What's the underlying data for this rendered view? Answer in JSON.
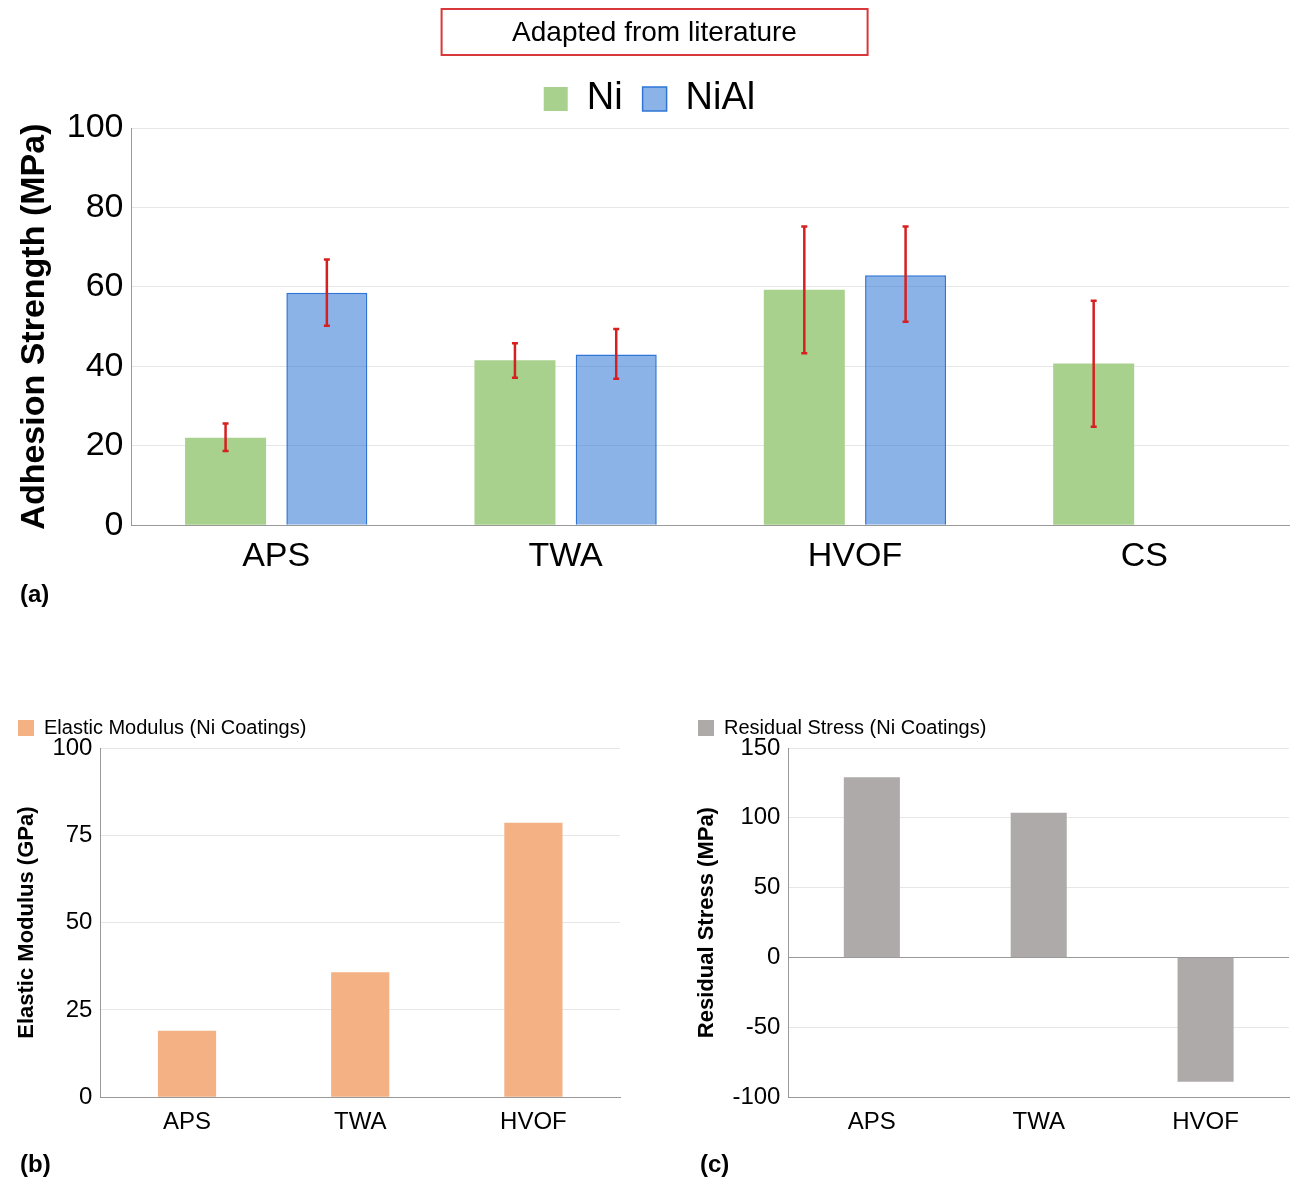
{
  "chart_data": [
    {
      "type": "bar",
      "annotations": [
        "Adapted from literature",
        "(a)"
      ],
      "ylabel": "Adhesion Strength (MPa)",
      "categories": [
        "APS",
        "TWA",
        "HVOF",
        "CS"
      ],
      "series": [
        {
          "name": "Ni",
          "color": "#a9d18e",
          "values": [
            22,
            41.5,
            59.3,
            40.7
          ],
          "errors": [
            [
              18.7,
              25.6
            ],
            [
              37.1,
              45.8
            ],
            [
              43.3,
              75.2
            ],
            [
              24.8,
              56.5
            ]
          ]
        },
        {
          "name": "NiAl",
          "color": "#2e75d6",
          "values": [
            58.5,
            43,
            62.9,
            null
          ],
          "errors": [
            [
              50.2,
              66.9
            ],
            [
              36.9,
              49.4
            ],
            [
              51.2,
              75.2
            ],
            null
          ]
        }
      ],
      "ylim": [
        0,
        100
      ],
      "yticks": [
        0,
        20,
        40,
        60,
        80,
        100
      ],
      "grid": "y",
      "legend": "top"
    },
    {
      "type": "bar",
      "annotations": [
        "(b)"
      ],
      "ylabel": "Elastic Modulus (GPa)",
      "categories": [
        "APS",
        "TWA",
        "HVOF"
      ],
      "series": [
        {
          "name": "Elastic Modulus (Ni Coatings)",
          "color": "#f4b183",
          "values": [
            19,
            35.8,
            78.6
          ]
        }
      ],
      "ylim": [
        0,
        100
      ],
      "yticks": [
        0,
        25,
        50,
        75,
        100
      ],
      "grid": "y",
      "legend": "top left"
    },
    {
      "type": "bar",
      "annotations": [
        "(c)"
      ],
      "ylabel": "Residual Stress (MPa)",
      "categories": [
        "APS",
        "TWA",
        "HVOF"
      ],
      "series": [
        {
          "name": "Residual Stress (Ni Coatings)",
          "color": "#aeaaaa",
          "values": [
            129,
            103.6,
            -89
          ]
        }
      ],
      "ylim": [
        -100,
        150
      ],
      "yticks": [
        -100,
        -50,
        0,
        50,
        100,
        150
      ],
      "grid": "y",
      "legend": "top left"
    }
  ]
}
